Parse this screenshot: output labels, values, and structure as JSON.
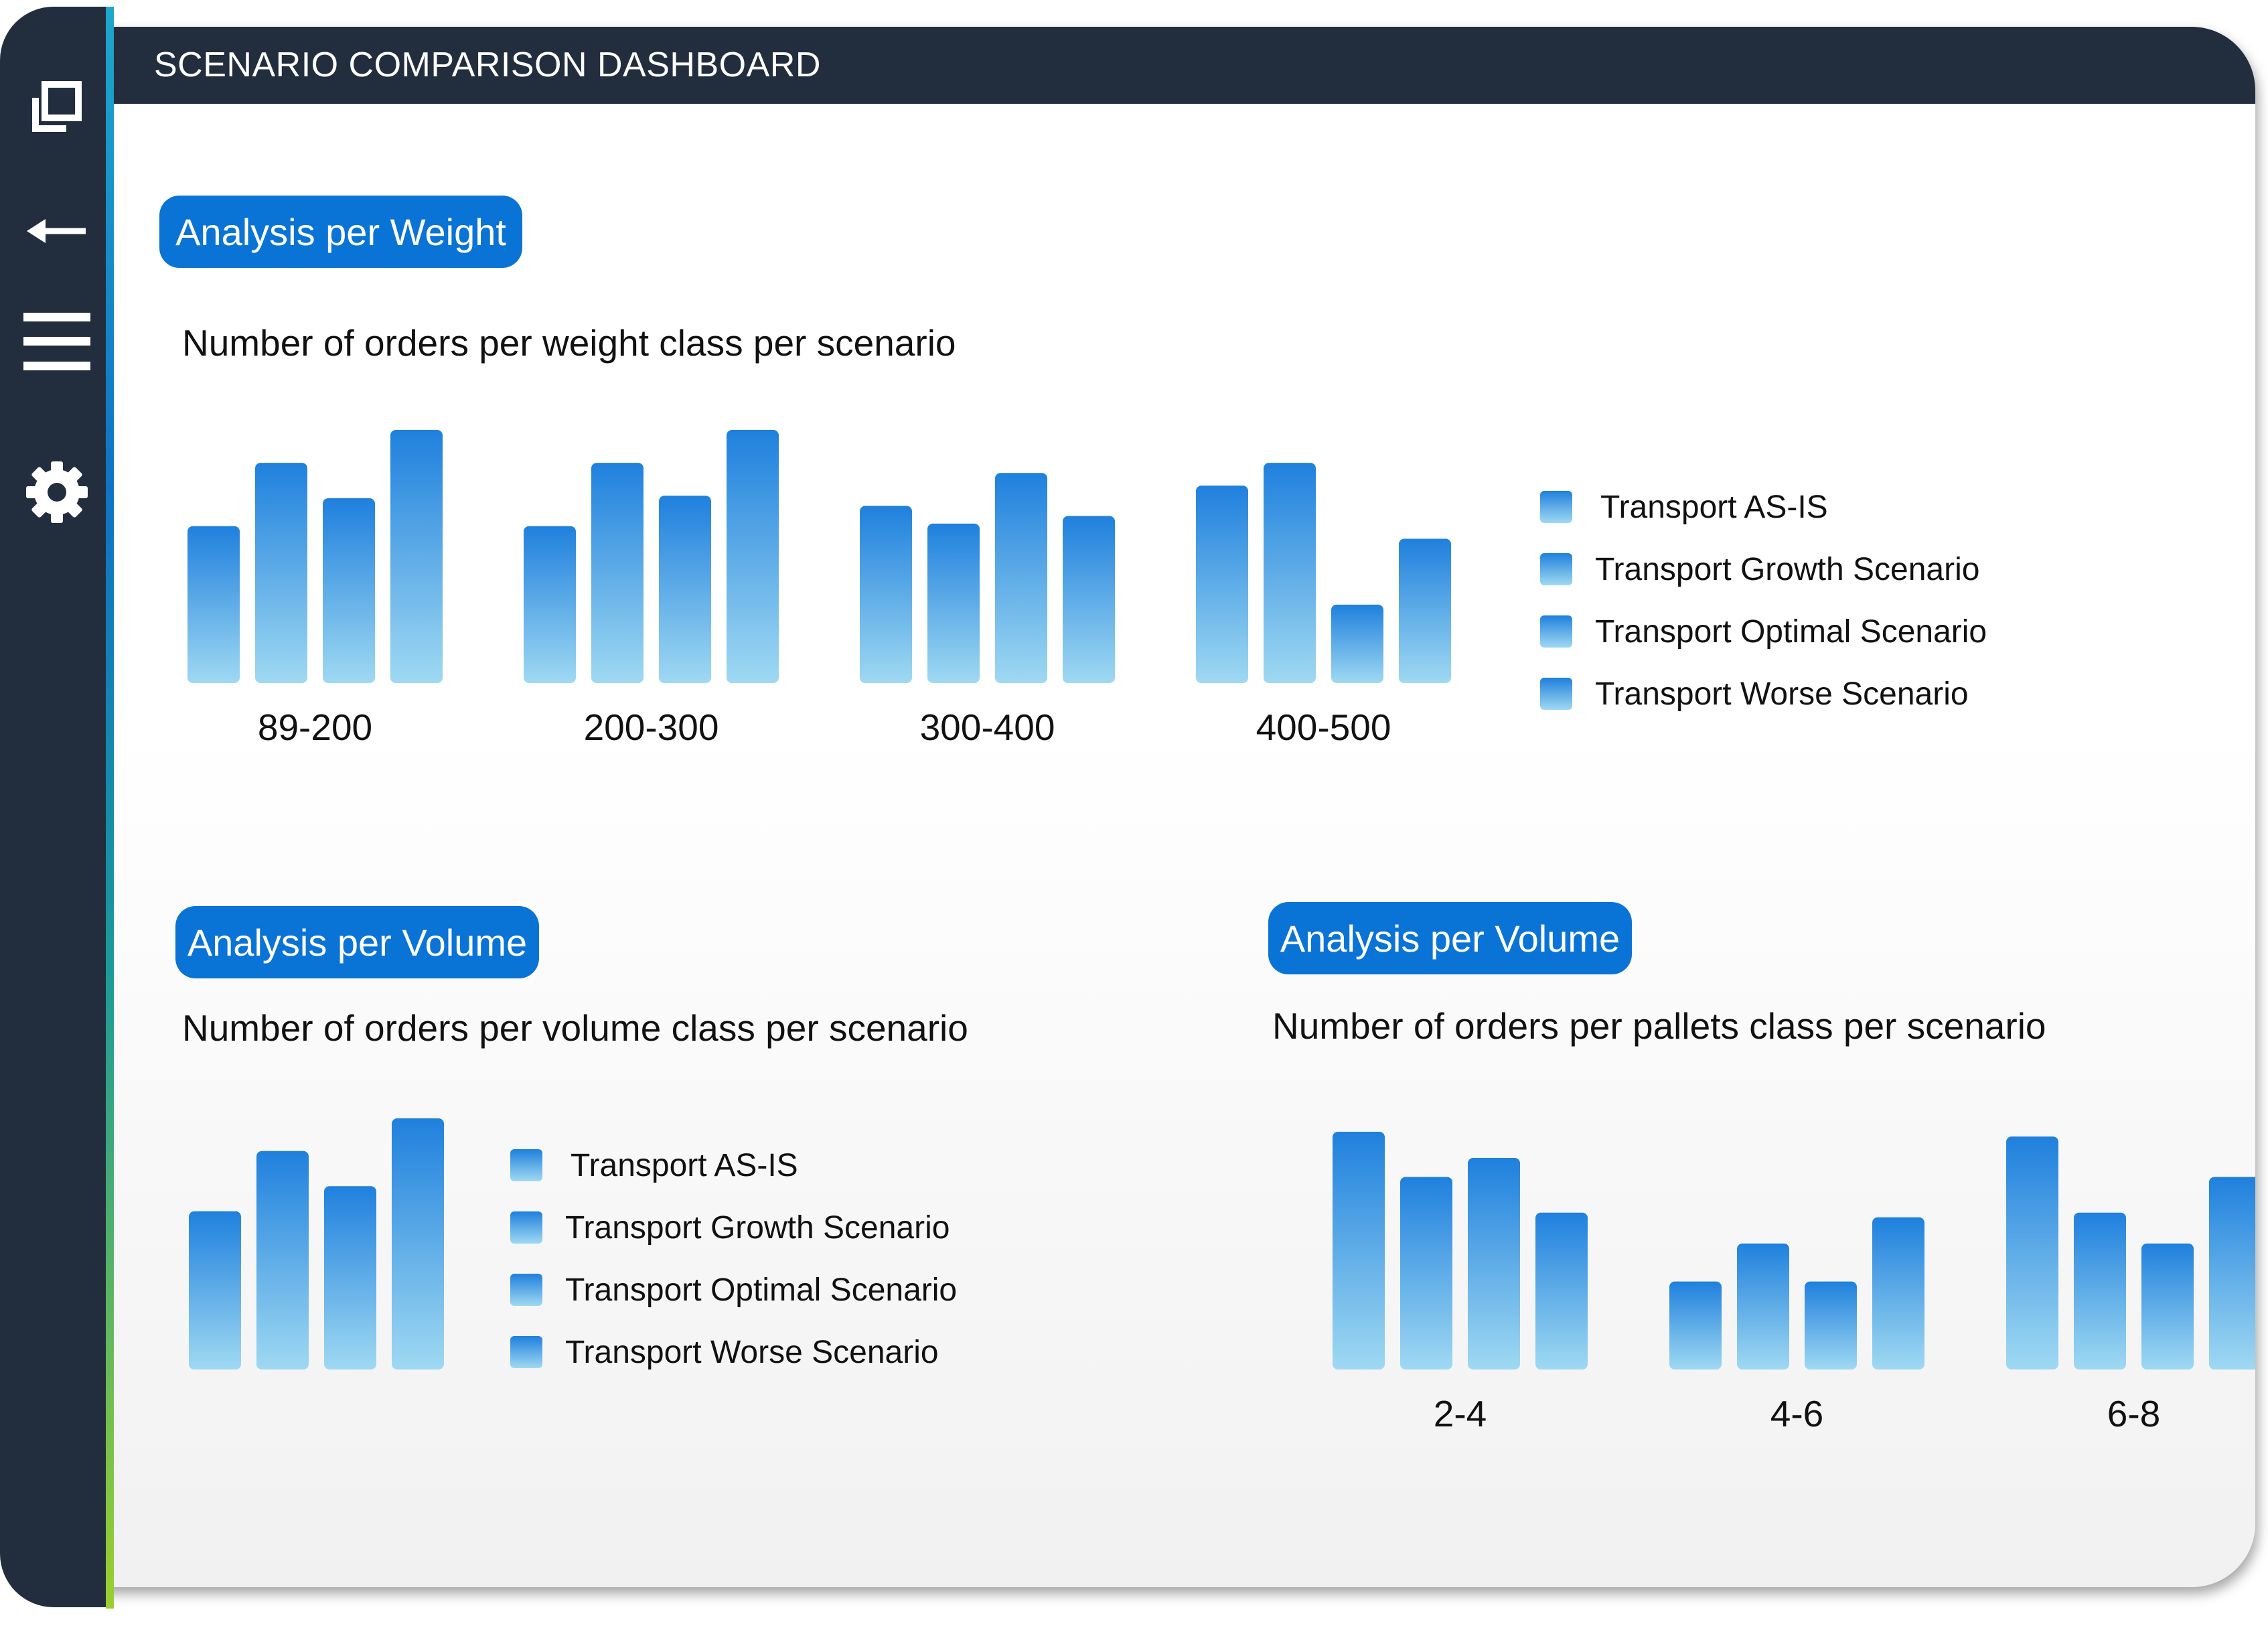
{
  "header": {
    "title": "SCENARIO COMPARISON DASHBOARD"
  },
  "sidebar": {
    "icons": [
      "window-icon",
      "back-arrow-icon",
      "menu-icon",
      "gear-icon"
    ]
  },
  "colors": {
    "header_bg": "#222e3e",
    "pill_bg": "#0a73d6",
    "bar_top": "#1f80dd",
    "bar_bottom": "#9fd9f2"
  },
  "legend": [
    "Transport AS-IS",
    "Transport Growth Scenario",
    "Transport Optimal Scenario",
    "Transport Worse Scenario"
  ],
  "panels": {
    "weight": {
      "pill": "Analysis per Weight",
      "subtitle": "Number of orders per weight class per scenario"
    },
    "volume": {
      "pill": "Analysis per Volume",
      "subtitle": "Number of orders per volume class per scenario"
    },
    "pallets": {
      "pill": "Analysis per Volume",
      "subtitle": "Number of orders per pallets class per scenario"
    }
  },
  "chart_data": [
    {
      "type": "bar",
      "categories": [
        "89-200",
        "200-300",
        "300-400",
        "400-500"
      ],
      "series": [
        {
          "name": "Transport AS-IS",
          "values": [
            62,
            62,
            70,
            78
          ]
        },
        {
          "name": "Transport Growth Scenario",
          "values": [
            87,
            87,
            63,
            87
          ]
        },
        {
          "name": "Transport Optimal Scenario",
          "values": [
            73,
            74,
            83,
            31
          ]
        },
        {
          "name": "Transport Worse Scenario",
          "values": [
            100,
            100,
            66,
            57
          ]
        }
      ],
      "ylim": [
        0,
        100
      ]
    },
    {
      "type": "bar",
      "categories": [
        ""
      ],
      "series": [
        {
          "name": "Transport AS-IS",
          "values": [
            63
          ]
        },
        {
          "name": "Transport Growth Scenario",
          "values": [
            87
          ]
        },
        {
          "name": "Transport Optimal Scenario",
          "values": [
            73
          ]
        },
        {
          "name": "Transport Worse Scenario",
          "values": [
            100
          ]
        }
      ],
      "ylim": [
        0,
        100
      ]
    },
    {
      "type": "bar",
      "categories": [
        "2-4",
        "4-6",
        "6-8"
      ],
      "series": [
        {
          "values": [
            100,
            37,
            98
          ]
        },
        {
          "values": [
            81,
            53,
            66
          ]
        },
        {
          "values": [
            89,
            37,
            53
          ]
        },
        {
          "values": [
            66,
            64,
            81
          ]
        }
      ],
      "ylim": [
        0,
        100
      ]
    }
  ]
}
